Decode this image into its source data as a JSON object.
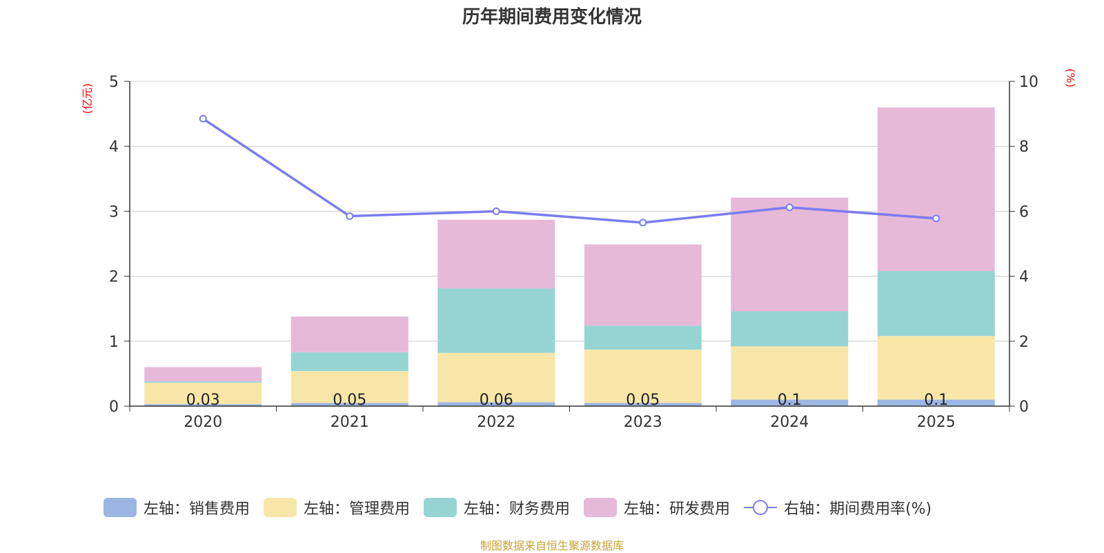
{
  "chart_data": {
    "type": "bar",
    "title": "历年期间费用变化情况",
    "categories": [
      "2020",
      "2021",
      "2022",
      "2023",
      "2024",
      "2025"
    ],
    "left_axis": {
      "unit_label": "(亿元)",
      "ylim": [
        0,
        5
      ],
      "ticks": [
        "0",
        "1",
        "2",
        "3",
        "4",
        "5"
      ]
    },
    "right_axis": {
      "unit_label": "(%)",
      "ylim": [
        0,
        10
      ],
      "ticks": [
        "0",
        "2",
        "4",
        "6",
        "8",
        "10"
      ]
    },
    "series": [
      {
        "name": "左轴：销售费用",
        "type": "bar",
        "axis": "left",
        "color": "#9cb6e3",
        "values": [
          0.03,
          0.05,
          0.06,
          0.05,
          0.1,
          0.1
        ],
        "labels": [
          "0.03",
          "0.05",
          "0.06",
          "0.05",
          "0.1",
          "0.1"
        ]
      },
      {
        "name": "左轴：管理费用",
        "type": "bar",
        "axis": "left",
        "color": "#f8e6a8",
        "values": [
          0.33,
          0.49,
          0.76,
          0.82,
          0.82,
          0.98
        ]
      },
      {
        "name": "左轴：财务费用",
        "type": "bar",
        "axis": "left",
        "color": "#96d4d4",
        "values": [
          0.02,
          0.29,
          0.99,
          0.37,
          0.54,
          1.0
        ]
      },
      {
        "name": "左轴：研发费用",
        "type": "bar",
        "axis": "left",
        "color": "#e7b9d8",
        "values": [
          0.22,
          0.55,
          1.06,
          1.25,
          1.75,
          2.52
        ]
      },
      {
        "name": "右轴：期间费用率(%)",
        "type": "line",
        "axis": "right",
        "color": "#7a7cf0",
        "values": [
          8.85,
          5.85,
          6.0,
          5.65,
          6.12,
          5.78
        ]
      }
    ],
    "grid": true,
    "legend_position": "bottom"
  },
  "footer": "制图数据来自恒生聚源数据库"
}
